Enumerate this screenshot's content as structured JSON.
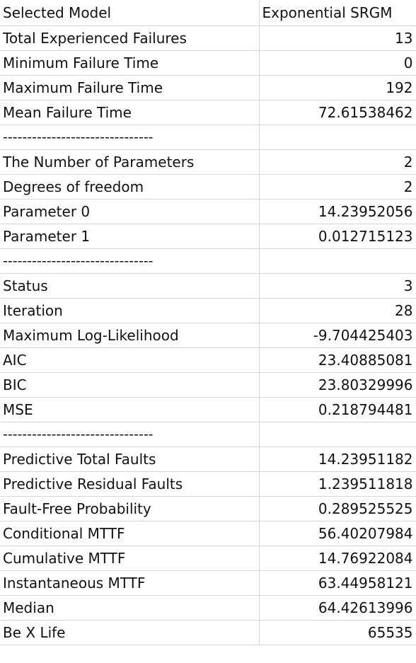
{
  "header": {
    "label": "Selected Model",
    "value": "Exponential SRGM"
  },
  "rows": [
    {
      "label": "Total Experienced Failures",
      "value": "13"
    },
    {
      "label": "Minimum Failure Time",
      "value": "0"
    },
    {
      "label": "Maximum Failure Time",
      "value": "192"
    },
    {
      "label": "Mean Failure Time",
      "value": "72.61538462"
    },
    {
      "label": "-------------------------------",
      "value": "",
      "separator": true
    },
    {
      "label": "The Number of Parameters",
      "value": "2"
    },
    {
      "label": "Degrees of freedom",
      "value": "2"
    },
    {
      "label": "Parameter 0",
      "value": "14.23952056"
    },
    {
      "label": "Parameter 1",
      "value": "0.012715123"
    },
    {
      "label": "-------------------------------",
      "value": "",
      "separator": true
    },
    {
      "label": "Status",
      "value": "3"
    },
    {
      "label": "Iteration",
      "value": "28"
    },
    {
      "label": "Maximum Log-Likelihood",
      "value": "-9.704425403"
    },
    {
      "label": "AIC",
      "value": "23.40885081"
    },
    {
      "label": "BIC",
      "value": "23.80329996"
    },
    {
      "label": "MSE",
      "value": "0.218794481"
    },
    {
      "label": "-------------------------------",
      "value": "",
      "separator": true
    },
    {
      "label": "Predictive Total Faults",
      "value": "14.23951182"
    },
    {
      "label": "Predictive Residual Faults",
      "value": "1.239511818"
    },
    {
      "label": "Fault-Free Probability",
      "value": "0.289525525"
    },
    {
      "label": "Conditional MTTF",
      "value": "56.40207984"
    },
    {
      "label": "Cumulative MTTF",
      "value": "14.76922084"
    },
    {
      "label": "Instantaneous MTTF",
      "value": "63.44958121"
    },
    {
      "label": "Median",
      "value": "64.42613996"
    },
    {
      "label": "Be X Life",
      "value": "65535"
    }
  ]
}
